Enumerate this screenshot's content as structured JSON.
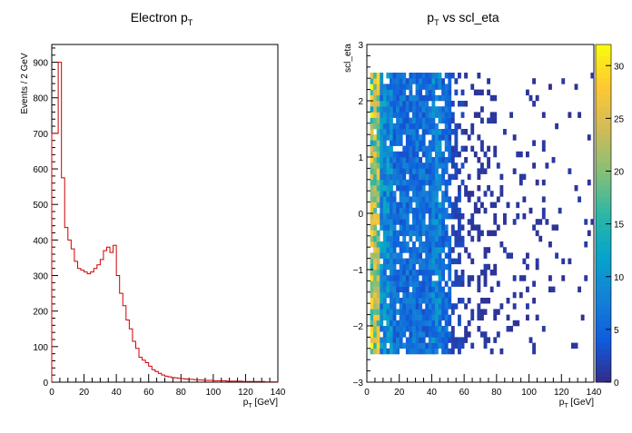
{
  "chart_data": [
    {
      "type": "histogram",
      "title": "Electron p",
      "title_subscript": "T",
      "xlabel_prefix": "p",
      "xlabel_subscript": "T",
      "xlabel_suffix": " [GeV]",
      "ylabel": "Events / 2 GeV",
      "xlim": [
        0,
        140
      ],
      "ylim": [
        0,
        950
      ],
      "bin_width": 2,
      "x_ticks": [
        "0",
        "20",
        "40",
        "60",
        "80",
        "100",
        "120",
        "140"
      ],
      "y_ticks": [
        "0",
        "100",
        "200",
        "300",
        "400",
        "500",
        "600",
        "700",
        "800",
        "900"
      ],
      "color": "#cc0000",
      "values": [
        700,
        700,
        900,
        575,
        435,
        400,
        375,
        340,
        320,
        315,
        310,
        305,
        310,
        320,
        330,
        345,
        370,
        380,
        365,
        385,
        300,
        250,
        215,
        175,
        150,
        115,
        95,
        70,
        62,
        55,
        45,
        35,
        30,
        25,
        20,
        17,
        15,
        13,
        12,
        11,
        10,
        9,
        8,
        8,
        7,
        6,
        6,
        5,
        5,
        5,
        4,
        4,
        4,
        4,
        3,
        3,
        3,
        3,
        3,
        2,
        2,
        2,
        2,
        2,
        2,
        2,
        1,
        1,
        1,
        1
      ]
    },
    {
      "type": "heatmap",
      "title_prefix": "p",
      "title_subscript": "T",
      "title_suffix": " vs scl_eta",
      "xlabel_prefix": "p",
      "xlabel_subscript": "T",
      "xlabel_suffix": " [GeV]",
      "ylabel": "scl_eta",
      "xlim": [
        0,
        140
      ],
      "ylim": [
        -3,
        3
      ],
      "x_ticks": [
        "0",
        "20",
        "40",
        "60",
        "80",
        "100",
        "120",
        "140"
      ],
      "y_ticks": [
        "−3",
        "−2",
        "−1",
        "0",
        "1",
        "2",
        "3"
      ],
      "z_ticks": [
        "0",
        "5",
        "10",
        "15",
        "20",
        "25",
        "30"
      ],
      "zlim": [
        0,
        32
      ],
      "x_bin_width": 2,
      "y_bin_width": 0.1,
      "eta_range": [
        -2.5,
        2.5
      ],
      "palette": [
        "#352a87",
        "#0f5cdd",
        "#1481d6",
        "#06a4ca",
        "#2eb7a4",
        "#87bf77",
        "#d1bb59",
        "#fec832",
        "#f9fb0e"
      ]
    }
  ]
}
